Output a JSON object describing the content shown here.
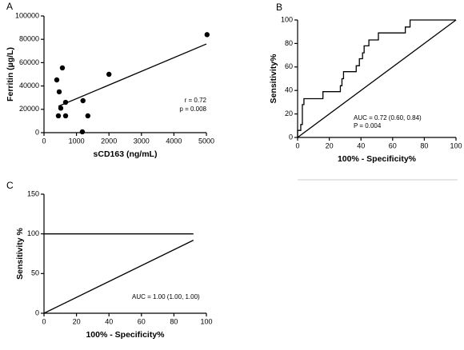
{
  "chart_data": [
    {
      "type": "scatter",
      "label": "A",
      "xlabel": "sCD163 (ng/mL)",
      "ylabel": "Ferritin (µg/L)",
      "x": [
        394,
        443,
        468,
        517,
        566,
        665,
        665,
        1180,
        1200,
        1350,
        2000,
        5020
      ],
      "values": [
        45200,
        14400,
        35000,
        21000,
        55500,
        26000,
        14400,
        700,
        27400,
        14400,
        50000,
        84000
      ],
      "color": "#000000",
      "fit_line": {
        "x": [
          443,
          5000
        ],
        "values": [
          22600,
          76000
        ]
      },
      "xlim": [
        0,
        5000
      ],
      "xticks": [
        0,
        1000,
        2000,
        3000,
        4000,
        5000
      ],
      "ylim": [
        0,
        100000
      ],
      "yticks": [
        0,
        20000,
        40000,
        60000,
        80000,
        100000
      ],
      "annotations": [
        "r = 0.72",
        "p = 0.008"
      ]
    },
    {
      "type": "line",
      "label": "B",
      "xlabel": "100% - Specificity%",
      "ylabel": "Sensitivity%",
      "series": [
        {
          "color": "#000000",
          "x": [
            0,
            0,
            2,
            2,
            3,
            3,
            4,
            4,
            16,
            16,
            27,
            27,
            28,
            28,
            29,
            29,
            37,
            37,
            39,
            39,
            41,
            41,
            42,
            42,
            45,
            45,
            51,
            51,
            68,
            68,
            71,
            71,
            100
          ],
          "values": [
            0,
            6,
            6,
            11,
            11,
            28,
            28,
            33,
            33,
            39,
            39,
            44,
            44,
            50,
            50,
            56,
            56,
            61,
            61,
            67,
            67,
            72,
            72,
            78,
            78,
            83,
            83,
            89,
            89,
            94,
            94,
            100,
            100
          ]
        },
        {
          "color": "#000000",
          "x": [
            0,
            100
          ],
          "values": [
            0,
            100
          ]
        }
      ],
      "xlim": [
        0,
        100
      ],
      "xticks": [
        0,
        20,
        40,
        60,
        80,
        100
      ],
      "ylim": [
        0,
        100
      ],
      "yticks": [
        0,
        20,
        40,
        60,
        80,
        100
      ],
      "annotations": [
        "AUC = 0.72 (0.60, 0.84)",
        "P = 0.004"
      ]
    },
    {
      "type": "line",
      "label": "C",
      "xlabel": "100% - Specificity%",
      "ylabel": "Sensitivity %",
      "series": [
        {
          "color": "#000000",
          "x": [
            0,
            92
          ],
          "values": [
            100,
            100
          ]
        },
        {
          "color": "#000000",
          "x": [
            0,
            92
          ],
          "values": [
            0,
            92
          ]
        }
      ],
      "xlim": [
        0,
        100
      ],
      "xticks": [
        0,
        20,
        40,
        60,
        80,
        100
      ],
      "ylim": [
        0,
        150
      ],
      "yticks": [
        0,
        50,
        100,
        150
      ],
      "annotations": [
        "AUC = 1.00 (1.00, 1.00)"
      ]
    }
  ]
}
